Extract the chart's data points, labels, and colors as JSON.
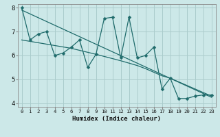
{
  "xlabel": "Humidex (Indice chaleur)",
  "xlim": [
    -0.5,
    23.5
  ],
  "ylim": [
    3.85,
    8.15
  ],
  "yticks": [
    4,
    5,
    6,
    7,
    8
  ],
  "xticks": [
    0,
    1,
    2,
    3,
    4,
    5,
    6,
    7,
    8,
    9,
    10,
    11,
    12,
    13,
    14,
    15,
    16,
    17,
    18,
    19,
    20,
    21,
    22,
    23
  ],
  "background_color": "#cce8e8",
  "grid_color": "#aacccc",
  "line_color": "#1f6b6b",
  "series_zigzag_x": [
    0,
    1,
    2,
    3,
    4,
    5,
    6,
    7,
    8,
    9,
    10,
    11,
    12,
    13,
    14,
    15,
    16,
    17,
    18,
    19,
    20,
    21,
    22,
    23
  ],
  "series_zigzag_y": [
    8.0,
    6.65,
    6.9,
    7.0,
    6.0,
    6.1,
    6.35,
    6.65,
    5.5,
    6.05,
    7.55,
    7.6,
    5.9,
    7.6,
    5.9,
    6.0,
    6.35,
    4.6,
    5.05,
    4.2,
    4.2,
    4.3,
    4.35,
    4.35
  ],
  "trend1_x": [
    0,
    23
  ],
  "trend1_y": [
    7.9,
    4.25
  ],
  "trend2_x": [
    0,
    6,
    9,
    12,
    14,
    15,
    16,
    17,
    18,
    19,
    20,
    21,
    22,
    23
  ],
  "trend2_y": [
    6.65,
    6.3,
    6.05,
    5.78,
    5.58,
    5.45,
    5.3,
    5.15,
    5.05,
    4.9,
    4.75,
    4.6,
    4.45,
    4.3
  ],
  "marker_size": 2.5
}
